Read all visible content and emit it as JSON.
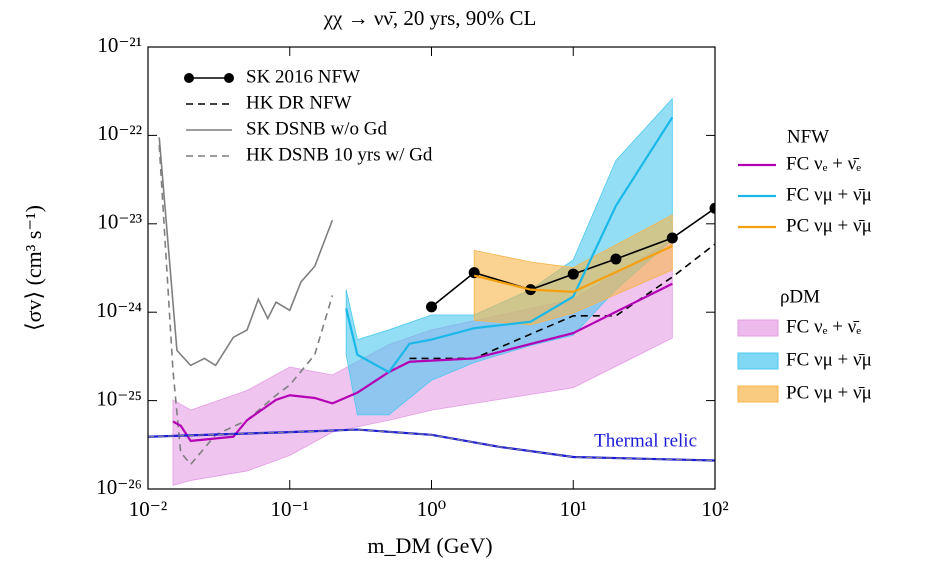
{
  "chart_data": {
    "type": "line",
    "title": "χχ → νν̄,  20 yrs,  90% CL",
    "xlabel": "m_DM (GeV)",
    "ylabel": "⟨σv⟩ (cm³ s⁻¹)",
    "xscale": "log",
    "yscale": "log",
    "xlim": [
      0.01,
      100
    ],
    "ylim": [
      1e-26,
      1e-21
    ],
    "xticks": [
      {
        "value": 0.01,
        "label": "10⁻²"
      },
      {
        "value": 0.1,
        "label": "10⁻¹"
      },
      {
        "value": 1,
        "label": "10⁰"
      },
      {
        "value": 10,
        "label": "10¹"
      },
      {
        "value": 100,
        "label": "10²"
      }
    ],
    "yticks": [
      {
        "value": 1e-26,
        "label": "10⁻²⁶"
      },
      {
        "value": 1e-25,
        "label": "10⁻²⁵"
      },
      {
        "value": 1e-24,
        "label": "10⁻²⁴"
      },
      {
        "value": 1e-23,
        "label": "10⁻²³"
      },
      {
        "value": 1e-22,
        "label": "10⁻²²"
      },
      {
        "value": 1e-21,
        "label": "10⁻²¹"
      }
    ],
    "series": [
      {
        "name": "SK 2016 NFW",
        "color": "#000000",
        "dash": false,
        "markers": true,
        "legend": "upper left",
        "x": [
          1,
          2,
          5,
          10,
          20,
          50,
          100
        ],
        "values": [
          1.15e-24,
          2.8e-24,
          1.8e-24,
          2.7e-24,
          4e-24,
          6.9e-24,
          1.5e-23
        ]
      },
      {
        "name": "HK DR NFW",
        "color": "#000000",
        "dash": true,
        "markers": false,
        "legend": "upper left",
        "x": [
          0.7,
          2,
          10,
          20,
          50,
          100
        ],
        "values": [
          3e-25,
          3e-25,
          9.1e-25,
          9.1e-25,
          2.5e-24,
          5.9e-24
        ]
      },
      {
        "name": "SK DSNB w/o Gd",
        "color": "#7f7f7f",
        "dash": false,
        "markers": false,
        "legend": "upper left",
        "x": [
          0.012,
          0.016,
          0.02,
          0.025,
          0.03,
          0.04,
          0.05,
          0.06,
          0.07,
          0.08,
          0.1,
          0.12,
          0.15,
          0.2
        ],
        "values": [
          9.5e-23,
          3.7e-25,
          2.5e-25,
          3e-25,
          2.5e-25,
          5.2e-25,
          6.3e-25,
          1.4e-24,
          8.5e-25,
          1.3e-24,
          1.05e-24,
          2.2e-24,
          3.3e-24,
          1.1e-23
        ]
      },
      {
        "name": "HK DSNB 10 yrs w/ Gd",
        "color": "#7f7f7f",
        "dash": true,
        "markers": false,
        "legend": "upper left",
        "x": [
          0.012,
          0.015,
          0.017,
          0.02,
          0.03,
          0.05,
          0.08,
          0.1,
          0.15,
          0.2
        ],
        "values": [
          7.8e-23,
          2.2e-25,
          2.6e-26,
          1.9e-26,
          4.1e-26,
          6e-26,
          1.15e-25,
          1.5e-25,
          3.3e-25,
          1.55e-24
        ]
      },
      {
        "name": "FC νₑ + ν̄ₑ",
        "color": "#b400b4",
        "dash": false,
        "markers": false,
        "legend": "right",
        "x": [
          0.015,
          0.017,
          0.02,
          0.04,
          0.05,
          0.08,
          0.1,
          0.15,
          0.2,
          0.3,
          0.5,
          0.7,
          2,
          10,
          50
        ],
        "values": [
          5.8e-26,
          5.2e-26,
          3.5e-26,
          3.9e-26,
          6e-26,
          1.02e-25,
          1.15e-25,
          1.07e-25,
          9.3e-26,
          1.23e-25,
          2.1e-25,
          2.75e-25,
          3e-25,
          5.8e-25,
          2.1e-24
        ]
      },
      {
        "name": "FC νμ + ν̄μ",
        "color": "#1ab8e8",
        "dash": false,
        "markers": false,
        "legend": "right",
        "x": [
          0.25,
          0.3,
          0.5,
          0.7,
          1,
          2,
          5,
          10,
          20,
          50
        ],
        "values": [
          1.1e-24,
          3.3e-25,
          2.1e-25,
          4.4e-25,
          4.9e-25,
          6.6e-25,
          7.8e-25,
          1.5e-24,
          1.6e-23,
          1.6e-22
        ]
      },
      {
        "name": "PC νμ + ν̄μ",
        "color": "#f5a00f",
        "dash": false,
        "markers": false,
        "legend": "right",
        "x": [
          2,
          5,
          10,
          50
        ],
        "values": [
          2.6e-24,
          1.8e-24,
          1.7e-24,
          5.6e-24
        ]
      },
      {
        "name": "Thermal relic",
        "color": "#1a1ad8",
        "dash": false,
        "markers": false,
        "legend": "inline",
        "x": [
          0.01,
          0.1,
          0.3,
          1,
          3,
          10,
          100
        ],
        "values": [
          3.9e-26,
          4.4e-26,
          4.7e-26,
          4.1e-26,
          3e-26,
          2.3e-26,
          2.1e-26
        ]
      }
    ],
    "nfw_legend_title": "NFW",
    "band_legend_title": "ρDM",
    "bands": [
      {
        "name": "FC νₑ + ν̄ₑ",
        "color": "#e49de4",
        "x": [
          0.015,
          0.02,
          0.05,
          0.1,
          0.2,
          0.5,
          1,
          10,
          50
        ],
        "upper": [
          1.02e-25,
          7.8e-26,
          1.3e-25,
          2.4e-25,
          1.95e-25,
          4.3e-25,
          6.3e-25,
          1.4e-24,
          6.6e-24
        ],
        "lower": [
          1.1e-26,
          1.25e-26,
          1.6e-26,
          2.4e-26,
          4.4e-26,
          6e-26,
          7.8e-26,
          1.4e-25,
          5.1e-25
        ]
      },
      {
        "name": "FC νμ + ν̄μ",
        "color": "#4cc8ef",
        "x": [
          0.25,
          0.3,
          0.5,
          1,
          2,
          5,
          10,
          20,
          50
        ],
        "upper": [
          1.8e-24,
          4.9e-25,
          6.3e-25,
          9.3e-25,
          9.3e-25,
          1.8e-24,
          3.9e-24,
          5.2e-23,
          2.6e-22
        ],
        "lower": [
          3.3e-25,
          6.9e-26,
          6.9e-26,
          1.7e-25,
          2.7e-25,
          4.2e-25,
          5.5e-25,
          1.8e-24,
          6.6e-24
        ]
      },
      {
        "name": "PC νμ + ν̄μ",
        "color": "#f7b54a",
        "x": [
          2,
          5,
          10,
          50
        ],
        "upper": [
          5e-24,
          3.7e-24,
          3.2e-24,
          1.26e-23
        ],
        "lower": [
          8.1e-25,
          7.2e-25,
          9.8e-25,
          3e-24
        ]
      }
    ]
  }
}
